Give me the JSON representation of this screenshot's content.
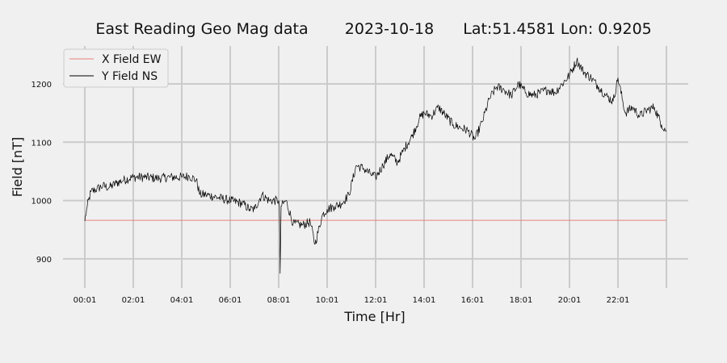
{
  "chart_data": {
    "type": "line",
    "title_parts": [
      "East Reading Geo Mag data",
      "2023-10-18",
      "Lat:51.4581  Lon: 0.9205"
    ],
    "xlabel": "Time  [Hr]",
    "ylabel": "Field  [nT]",
    "x_unit": "hours",
    "xlim": [
      -0.9,
      24.9
    ],
    "ylim": [
      850,
      1265
    ],
    "x_ticks": [
      {
        "value": 0,
        "label": "00:01"
      },
      {
        "value": 2,
        "label": "02:01"
      },
      {
        "value": 4,
        "label": "04:01"
      },
      {
        "value": 6,
        "label": "06:01"
      },
      {
        "value": 8,
        "label": "08:01"
      },
      {
        "value": 10,
        "label": "10:01"
      },
      {
        "value": 12,
        "label": "12:01"
      },
      {
        "value": 14,
        "label": "14:01"
      },
      {
        "value": 16,
        "label": "16:01"
      },
      {
        "value": 18,
        "label": "18:01"
      },
      {
        "value": 20,
        "label": "20:01"
      },
      {
        "value": 22,
        "label": "22:01"
      }
    ],
    "x_gridlines": [
      0,
      2,
      4,
      6,
      8,
      10,
      12,
      14,
      16,
      18,
      20,
      22,
      24
    ],
    "y_ticks": [
      900,
      1000,
      1100,
      1200
    ],
    "grid": true,
    "legend_position": "top-left",
    "series": [
      {
        "name": "X Field EW",
        "color": "#e8827a",
        "x": [
          0,
          24
        ],
        "y": [
          966,
          966
        ]
      },
      {
        "name": "Y Field NS",
        "color": "#000000",
        "x": [
          0,
          0.1,
          0.25,
          0.5,
          0.75,
          1.0,
          1.3,
          1.6,
          2.0,
          2.5,
          3.0,
          3.5,
          4.0,
          4.3,
          4.6,
          4.75,
          5.0,
          5.5,
          6.0,
          6.5,
          6.8,
          7.0,
          7.3,
          7.6,
          8.0,
          8.03,
          8.06,
          8.1,
          8.3,
          8.6,
          9.0,
          9.3,
          9.5,
          9.8,
          10.0,
          10.3,
          10.6,
          10.9,
          11.2,
          11.5,
          11.8,
          12.0,
          12.3,
          12.6,
          12.9,
          13.2,
          13.5,
          13.8,
          14.0,
          14.3,
          14.6,
          14.9,
          15.2,
          15.5,
          15.8,
          16.1,
          16.4,
          16.7,
          17.0,
          17.3,
          17.6,
          17.9,
          18.2,
          18.5,
          18.8,
          19.1,
          19.4,
          19.7,
          20.0,
          20.3,
          20.6,
          20.9,
          21.2,
          21.5,
          21.8,
          22.0,
          22.3,
          22.6,
          22.9,
          23.2,
          23.5,
          23.8,
          24.0
        ],
        "y": [
          965,
          990,
          1015,
          1020,
          1025,
          1022,
          1030,
          1035,
          1040,
          1040,
          1038,
          1040,
          1040,
          1042,
          1035,
          1010,
          1010,
          1005,
          1000,
          995,
          985,
          985,
          1010,
          1000,
          1000,
          990,
          875,
          990,
          1000,
          960,
          958,
          963,
          925,
          975,
          985,
          990,
          995,
          1010,
          1060,
          1055,
          1045,
          1040,
          1060,
          1080,
          1065,
          1090,
          1110,
          1140,
          1150,
          1145,
          1160,
          1145,
          1130,
          1125,
          1120,
          1105,
          1135,
          1175,
          1195,
          1190,
          1180,
          1200,
          1185,
          1180,
          1185,
          1190,
          1185,
          1200,
          1215,
          1240,
          1220,
          1210,
          1195,
          1180,
          1170,
          1210,
          1150,
          1160,
          1145,
          1155,
          1160,
          1130,
          1120
        ]
      }
    ]
  }
}
